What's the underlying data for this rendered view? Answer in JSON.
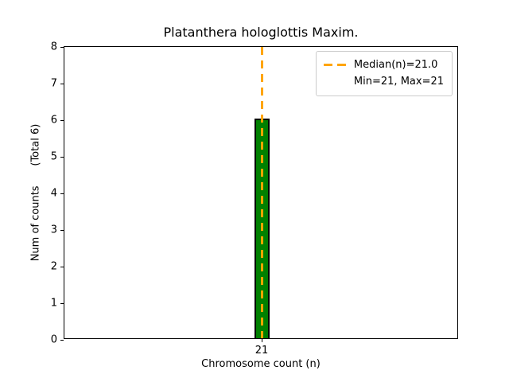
{
  "figure": {
    "background": "#ffffff"
  },
  "chart_data": {
    "type": "bar",
    "title": "Platanthera hologlottis Maxim.",
    "xlabel": "Chromosome count (n)",
    "ylabel": "Num of counts      (Total 6)",
    "categories": [
      "21"
    ],
    "values": [
      6
    ],
    "total_counts": 6,
    "ylim": [
      0,
      8
    ],
    "yticks": [
      0,
      1,
      2,
      3,
      4,
      5,
      6,
      7,
      8
    ],
    "grid": false,
    "bar_color": "#008000",
    "bar_edge_color": "#000000",
    "median_line": {
      "value": 21.0,
      "color": "#FFA500",
      "style": "dashed"
    },
    "legend": {
      "position": "upper right",
      "entries": [
        {
          "marker": "dashed-line",
          "color": "#FFA500",
          "label": "Median(n)=21.0"
        },
        {
          "marker": "none",
          "color": "",
          "label": "Min=21, Max=21"
        }
      ]
    }
  }
}
